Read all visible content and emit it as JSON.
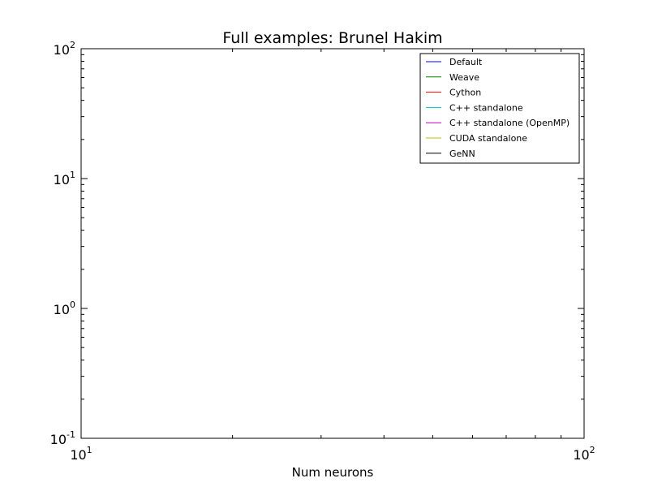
{
  "chart_data": {
    "type": "line",
    "title": "Full examples: Brunel Hakim",
    "xlabel": "Num neurons",
    "ylabel": "",
    "xscale": "log",
    "yscale": "log",
    "xlim": [
      10,
      100
    ],
    "ylim": [
      0.1,
      100
    ],
    "grid": false,
    "legend_position": "top-right",
    "x_ticks": [
      {
        "base": "10",
        "exp": "1",
        "value": 10
      },
      {
        "base": "10",
        "exp": "2",
        "value": 100
      }
    ],
    "y_ticks": [
      {
        "base": "10",
        "exp": "-1",
        "value": 0.1
      },
      {
        "base": "10",
        "exp": "0",
        "value": 1
      },
      {
        "base": "10",
        "exp": "1",
        "value": 10
      },
      {
        "base": "10",
        "exp": "2",
        "value": 100
      }
    ],
    "series": [
      {
        "name": "Default",
        "color": "#0000ff",
        "x": [],
        "y": []
      },
      {
        "name": "Weave",
        "color": "#008000",
        "x": [],
        "y": []
      },
      {
        "name": "Cython",
        "color": "#ff0000",
        "x": [],
        "y": []
      },
      {
        "name": "C++ standalone",
        "color": "#00bfbf",
        "x": [],
        "y": []
      },
      {
        "name": "C++ standalone (OpenMP)",
        "color": "#bf00bf",
        "x": [],
        "y": []
      },
      {
        "name": "CUDA standalone",
        "color": "#bfbf00",
        "x": [],
        "y": []
      },
      {
        "name": "GeNN",
        "color": "#000000",
        "x": [],
        "y": []
      }
    ]
  }
}
